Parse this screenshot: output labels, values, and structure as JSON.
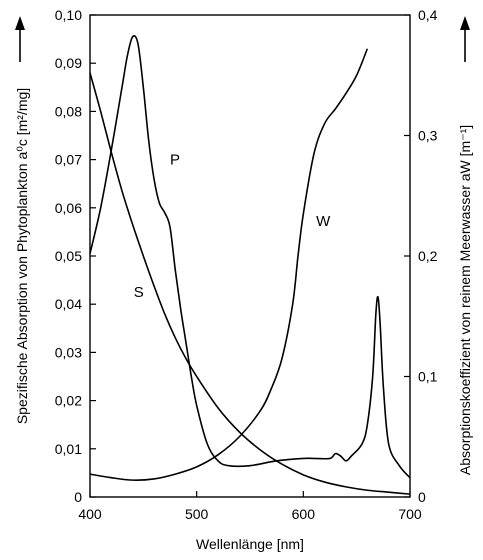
{
  "chart_data": {
    "type": "line",
    "xlabel": "Wellenlänge [nm]",
    "ylabel_left": "Spezifische Absorption von Phytoplankton a⁰c [m²/mg]",
    "ylabel_right": "Absorptionskoeffizient von reinem Meerwasser aW [m⁻¹]",
    "xlim": [
      400,
      700
    ],
    "ylim_left": [
      0,
      0.1
    ],
    "ylim_right": [
      0,
      0.4
    ],
    "x_ticks": [
      {
        "value": 400,
        "label": "400"
      },
      {
        "value": 500,
        "label": "500"
      },
      {
        "value": 600,
        "label": "600"
      },
      {
        "value": 700,
        "label": "700"
      }
    ],
    "y_left_ticks": [
      {
        "value": 0,
        "label": "0"
      },
      {
        "value": 0.01,
        "label": "0,01"
      },
      {
        "value": 0.02,
        "label": "0,02"
      },
      {
        "value": 0.03,
        "label": "0,03"
      },
      {
        "value": 0.04,
        "label": "0,04"
      },
      {
        "value": 0.05,
        "label": "0,05"
      },
      {
        "value": 0.06,
        "label": "0,06"
      },
      {
        "value": 0.07,
        "label": "0,07"
      },
      {
        "value": 0.08,
        "label": "0,08"
      },
      {
        "value": 0.09,
        "label": "0,09"
      },
      {
        "value": 0.1,
        "label": "0,10"
      }
    ],
    "y_right_ticks": [
      {
        "value": 0,
        "label": "0"
      },
      {
        "value": 0.1,
        "label": "0,1"
      },
      {
        "value": 0.2,
        "label": "0,2"
      },
      {
        "value": 0.3,
        "label": "0,3"
      },
      {
        "value": 0.4,
        "label": "0,4"
      }
    ],
    "grid": false,
    "legend": "none",
    "series": [
      {
        "name": "P",
        "axis": "left",
        "label_at": [
          475,
          0.069
        ],
        "x": [
          400,
          410,
          420,
          430,
          435,
          440,
          445,
          450,
          455,
          460,
          465,
          470,
          475,
          480,
          485,
          490,
          495,
          500,
          510,
          520,
          530,
          550,
          575,
          600,
          610,
          625,
          630,
          635,
          640,
          645,
          655,
          660,
          665,
          668,
          670,
          672,
          675,
          680,
          690,
          700
        ],
        "y": [
          0.0505,
          0.06,
          0.072,
          0.085,
          0.0915,
          0.0955,
          0.094,
          0.085,
          0.074,
          0.066,
          0.061,
          0.059,
          0.056,
          0.047,
          0.039,
          0.032,
          0.025,
          0.019,
          0.011,
          0.0075,
          0.0065,
          0.0065,
          0.0075,
          0.008,
          0.008,
          0.008,
          0.009,
          0.0085,
          0.0075,
          0.0085,
          0.011,
          0.015,
          0.025,
          0.038,
          0.0415,
          0.036,
          0.023,
          0.011,
          0.0065,
          0.004
        ]
      },
      {
        "name": "S",
        "axis": "left",
        "label_at": [
          441,
          0.0415
        ],
        "x": [
          400,
          410,
          420,
          430,
          440,
          450,
          460,
          470,
          480,
          490,
          500,
          520,
          540,
          560,
          580,
          600,
          620,
          640,
          660,
          680,
          700
        ],
        "y": [
          0.088,
          0.08,
          0.0715,
          0.0635,
          0.0565,
          0.05,
          0.0438,
          0.038,
          0.033,
          0.0287,
          0.025,
          0.0185,
          0.0135,
          0.0097,
          0.0068,
          0.0046,
          0.0031,
          0.0021,
          0.0014,
          0.001,
          0.0006
        ]
      },
      {
        "name": "W",
        "axis": "right",
        "label_at": [
          612,
          0.225
        ],
        "x": [
          400,
          420,
          440,
          460,
          480,
          500,
          520,
          540,
          560,
          570,
          580,
          590,
          595,
          600,
          610,
          620,
          630,
          640,
          650,
          660
        ],
        "y": [
          0.019,
          0.016,
          0.014,
          0.015,
          0.019,
          0.025,
          0.035,
          0.05,
          0.072,
          0.09,
          0.115,
          0.16,
          0.2,
          0.235,
          0.285,
          0.31,
          0.322,
          0.335,
          0.35,
          0.372
        ]
      }
    ]
  }
}
